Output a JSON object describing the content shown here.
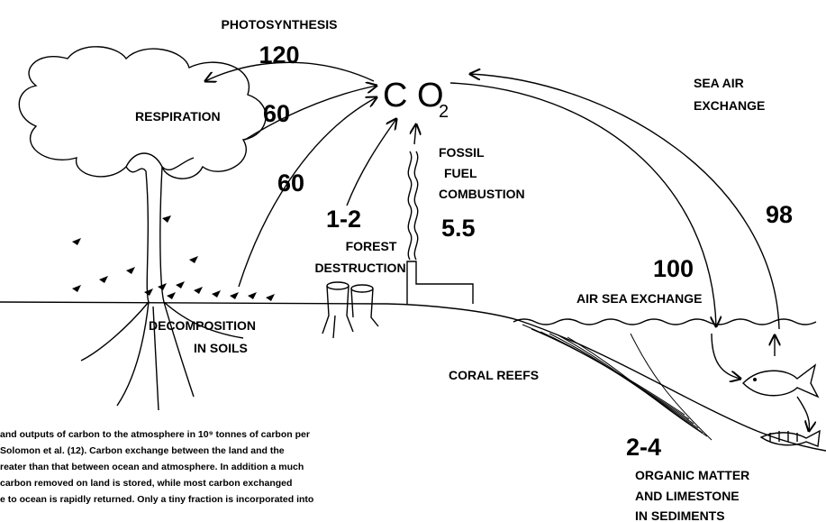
{
  "photosynthesis": {
    "label": "PHOTOSYNTHESIS",
    "value": 120
  },
  "respiration": {
    "label": "RESPIRATION",
    "value": 60
  },
  "atmosphere": {
    "base": "C O",
    "subscript": "2"
  },
  "decomposition": {
    "value": 60,
    "label": [
      "DECOMPOSITION",
      "IN SOILS"
    ]
  },
  "forest_destruction": {
    "value": "1-2",
    "label": [
      "FOREST",
      "DESTRUCTION"
    ]
  },
  "fossil_fuel": {
    "label": [
      "FOSSIL",
      "FUEL",
      "COMBUSTION"
    ],
    "value": 5.5
  },
  "sea_air": {
    "label": [
      "SEA AIR",
      "EXCHANGE"
    ],
    "value": 98
  },
  "air_sea": {
    "value": 100,
    "label": "AIR SEA EXCHANGE"
  },
  "coral_reefs": {
    "label": "CORAL REEFS"
  },
  "sediments": {
    "value": "2-4",
    "label": [
      "ORGANIC MATTER",
      "AND LIMESTONE",
      "IN SEDIMENTS"
    ]
  },
  "caption": [
    "and outputs of carbon to the atmosphere in 10⁹ tonnes of carbon per",
    "Solomon et al. (12). Carbon exchange between the land and the",
    "reater than that between ocean and atmosphere. In addition a much",
    "carbon removed on land is stored, while most carbon exchanged",
    "e to ocean is rapidly returned. Only a tiny fraction is incorporated into"
  ]
}
